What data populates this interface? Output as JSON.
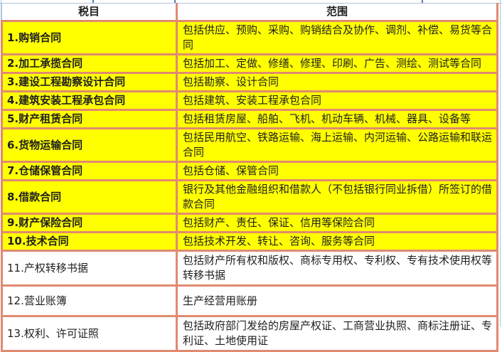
{
  "colors": {
    "background": "#FFFFFF",
    "table_border": "#E18A70",
    "gridline": "#AEC3DE",
    "tick": "#5B7EAE",
    "highlight": "#FFFF00",
    "text": "#1F1F1F"
  },
  "table": {
    "header": {
      "item": "税目",
      "scope": "范围"
    },
    "rows": [
      {
        "item": "1.购销合同",
        "scope": "包括供应、预购、采购、购销结合及协作、调剂、补偿、易货等合同",
        "highlight": true
      },
      {
        "item": "2.加工承揽合同",
        "scope": "包括加工、定做、修缮、修理、印刷、广告、测绘、测试等合同",
        "highlight": true
      },
      {
        "item": "3.建设工程勘察设计合同",
        "scope": "包括勘察、设计合同",
        "highlight": true
      },
      {
        "item": "4.建筑安装工程承包合同",
        "scope": "包括建筑、安装工程承包合同",
        "highlight": true
      },
      {
        "item": "5.财产租赁合同",
        "scope": "包括租赁房屋、船舶、飞机、机动车辆、机械、器具、设备等",
        "highlight": true
      },
      {
        "item": "6.货物运输合同",
        "scope": "包括民用航空、铁路运输、海上运输、内河运输、公路运输和联运合同",
        "highlight": true
      },
      {
        "item": "7.仓储保管合同",
        "scope": "包括仓储、保管合同",
        "highlight": true
      },
      {
        "item": "8.借款合同",
        "scope": "银行及其他金融组织和借款人（不包括银行同业拆借）所签订的借款合同",
        "highlight": true
      },
      {
        "item": "9.财产保险合同",
        "scope": "包括财产、责任、保证、信用等保险合同",
        "highlight": true
      },
      {
        "item": "10.技术合同",
        "scope": "包括技术开发、转让、咨询、服务等合同",
        "highlight": true
      },
      {
        "item": "11.产权转移书据",
        "scope": "包括财产所有权和版权、商标专用权、专利权、专有技术使用权等转移书据",
        "highlight": false
      },
      {
        "item": "12.营业账簿",
        "scope": "生产经营用账册",
        "highlight": false
      },
      {
        "item": "13.权利、许可证照",
        "scope": "包括政府部门发给的房屋产权证、工商营业执照、商标注册证、专利证、土地使用证",
        "highlight": false
      }
    ]
  }
}
